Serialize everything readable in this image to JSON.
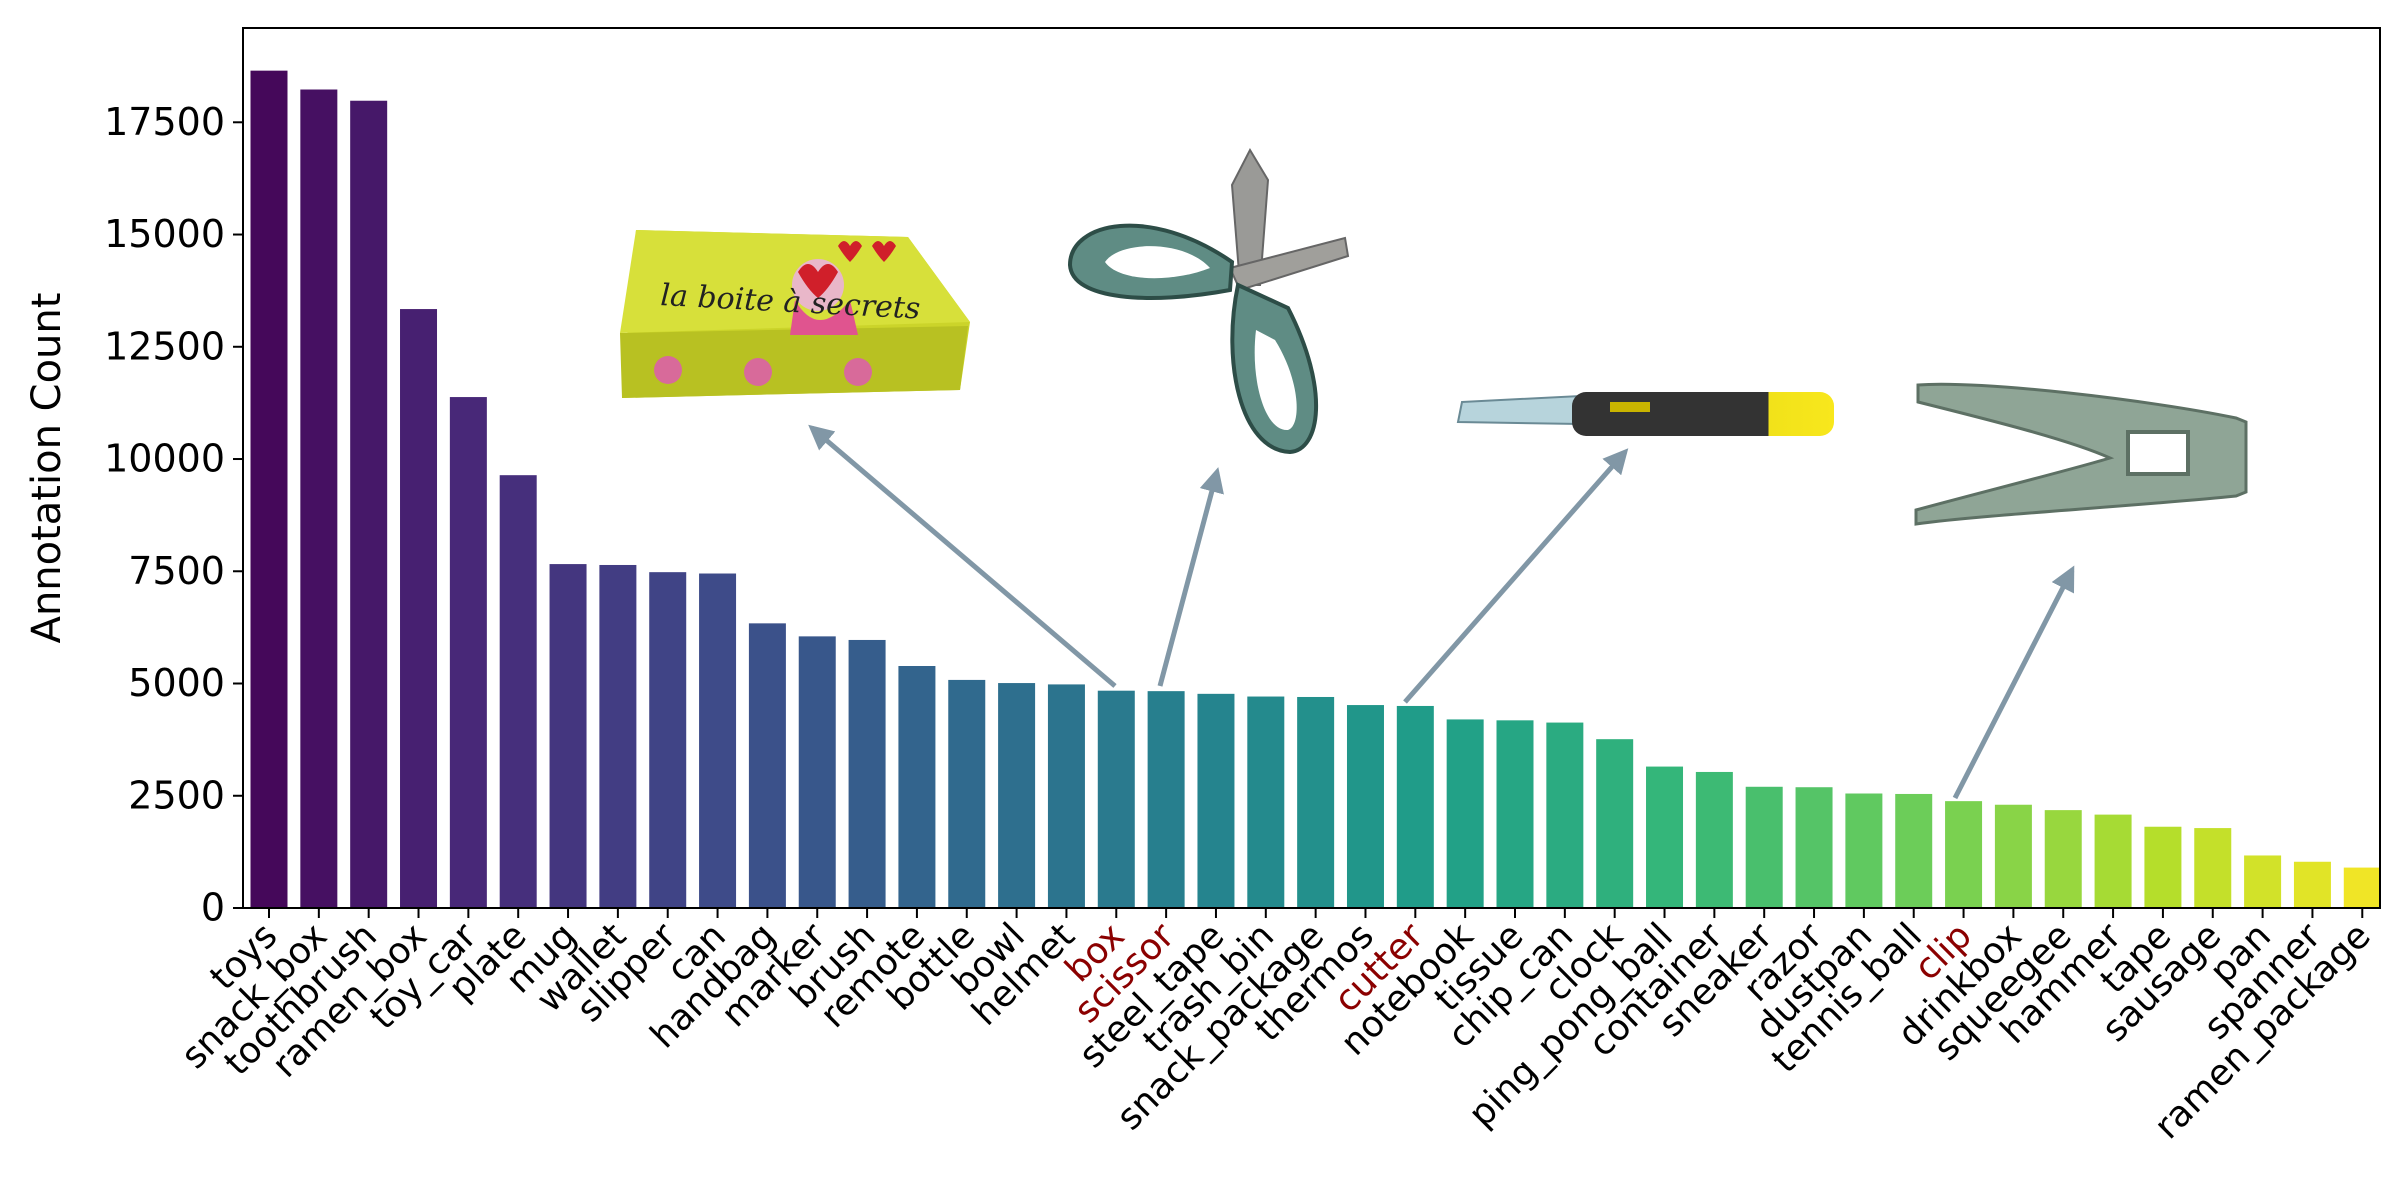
{
  "chart_data": {
    "type": "bar",
    "title": "",
    "xlabel": "",
    "ylabel": "Annotation Count",
    "ylim": [
      0,
      19600
    ],
    "yticks": [
      0,
      2500,
      5000,
      7500,
      10000,
      12500,
      15000,
      17500
    ],
    "grid": false,
    "legend": "none",
    "colormap": "viridis",
    "highlight_color": "#8b0000",
    "highlighted": [
      "box",
      "scissor",
      "cutter",
      "clip"
    ],
    "categories": [
      "toys",
      "snack_box",
      "toothbrush",
      "ramen_box",
      "toy_car",
      "plate",
      "mug",
      "wallet",
      "slipper",
      "can",
      "handbag",
      "marker",
      "brush",
      "remote",
      "bottle",
      "bowl",
      "helmet",
      "box",
      "scissor",
      "steel_tape",
      "trash_bin",
      "snack_package",
      "thermos",
      "cutter",
      "notebook",
      "tissue",
      "chip_can",
      "clock",
      "ping_pong_ball",
      "container",
      "sneaker",
      "razor",
      "dustpan",
      "tennis_ball",
      "clip",
      "drinkbox",
      "squeegee",
      "hammer",
      "tape",
      "sausage",
      "pan",
      "spanner",
      "ramen_package"
    ],
    "values": [
      18650,
      18230,
      17980,
      13340,
      11380,
      9640,
      7660,
      7640,
      7480,
      7450,
      6340,
      6050,
      5970,
      5390,
      5080,
      5010,
      4980,
      4840,
      4830,
      4770,
      4710,
      4700,
      4520,
      4500,
      4200,
      4180,
      4130,
      3760,
      3150,
      3030,
      2700,
      2690,
      2550,
      2540,
      2380,
      2300,
      2180,
      2080,
      1810,
      1780,
      1170,
      1030,
      900
    ],
    "insets": [
      {
        "object": "box",
        "image_text": "la boite à secrets"
      },
      {
        "object": "scissor",
        "image_text": ""
      },
      {
        "object": "cutter",
        "image_text": ""
      },
      {
        "object": "clip",
        "image_text": ""
      }
    ]
  }
}
